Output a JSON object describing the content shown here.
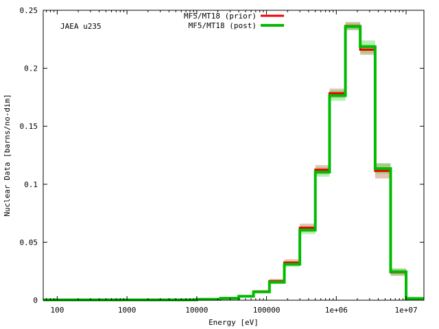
{
  "chart_data": {
    "type": "line",
    "subtype": "step-histogram",
    "annotation": "JAEA u235",
    "xlabel": "Energy [eV]",
    "ylabel": "Nuclear Data [barns/no-dim]",
    "xscale": "log",
    "xlim": [
      63,
      18000000
    ],
    "ylim": [
      0,
      0.25
    ],
    "x_ticks": [
      {
        "value": 100,
        "label": "100"
      },
      {
        "value": 1000,
        "label": "1000"
      },
      {
        "value": 10000,
        "label": "10000"
      },
      {
        "value": 100000,
        "label": "100000"
      },
      {
        "value": 1000000,
        "label": "1e+06"
      },
      {
        "value": 10000000,
        "label": "1e+07"
      }
    ],
    "y_ticks": [
      {
        "value": 0,
        "label": "0"
      },
      {
        "value": 0.05,
        "label": "0.05"
      },
      {
        "value": 0.1,
        "label": "0.1"
      },
      {
        "value": 0.15,
        "label": "0.15"
      },
      {
        "value": 0.2,
        "label": "0.2"
      },
      {
        "value": 0.25,
        "label": "0.25"
      }
    ],
    "legend_position": "top-center",
    "bin_edges": [
      63,
      10000,
      22000,
      40000,
      65000,
      110000,
      180000,
      300000,
      500000,
      800000,
      1350000,
      2200000,
      3600000,
      6000000,
      10000000,
      18000000
    ],
    "series": [
      {
        "name": "MF5/MT18 (prior)",
        "color": "#ee0000",
        "band_color": "#c8785a",
        "values": [
          0.0003,
          0.0008,
          0.0018,
          0.0035,
          0.0075,
          0.0165,
          0.0325,
          0.0625,
          0.1125,
          0.1785,
          0.2365,
          0.216,
          0.1115,
          0.024,
          0.0015
        ],
        "band": [
          0.0003,
          0.0005,
          0.0006,
          0.0009,
          0.0012,
          0.0018,
          0.0028,
          0.0035,
          0.004,
          0.004,
          0.0035,
          0.0045,
          0.0065,
          0.003,
          0.0005
        ]
      },
      {
        "name": "MF5/MT18 (post)",
        "color": "#00bb00",
        "band_color": "#44dd44",
        "values": [
          0.0003,
          0.0008,
          0.0017,
          0.0034,
          0.0072,
          0.0155,
          0.031,
          0.0605,
          0.1105,
          0.1765,
          0.236,
          0.2185,
          0.1135,
          0.0245,
          0.0015
        ],
        "band": [
          0.0003,
          0.0004,
          0.0005,
          0.0007,
          0.001,
          0.0015,
          0.0022,
          0.0035,
          0.004,
          0.0045,
          0.003,
          0.0055,
          0.0045,
          0.003,
          0.0005
        ]
      }
    ]
  }
}
